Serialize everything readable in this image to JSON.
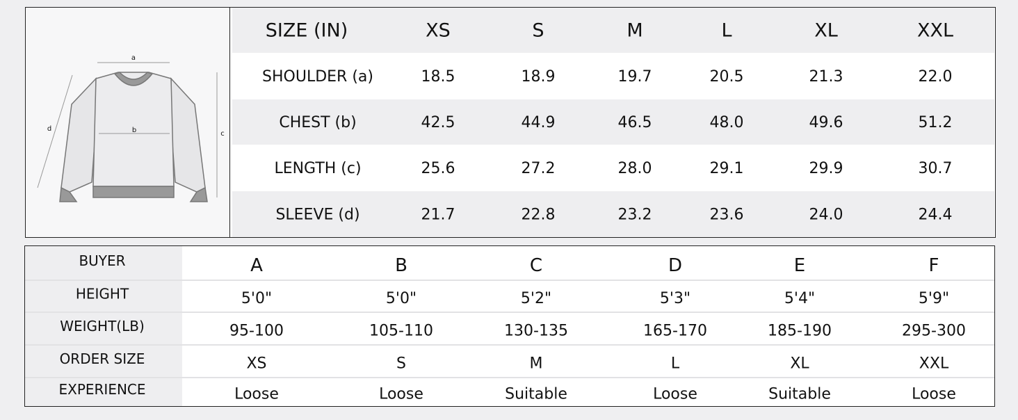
{
  "illustration": {
    "labels": [
      "a",
      "b",
      "c",
      "d"
    ]
  },
  "size_table": {
    "header": [
      "SIZE (IN)",
      "XS",
      "S",
      "M",
      "L",
      "XL",
      "XXL"
    ],
    "rows": [
      [
        "SHOULDER (a)",
        "18.5",
        "18.9",
        "19.7",
        "20.5",
        "21.3",
        "22.0"
      ],
      [
        "CHEST (b)",
        "42.5",
        "44.9",
        "46.5",
        "48.0",
        "49.6",
        "51.2"
      ],
      [
        "LENGTH (c)",
        "25.6",
        "27.2",
        "28.0",
        "29.1",
        "29.9",
        "30.7"
      ],
      [
        "SLEEVE (d)",
        "21.7",
        "22.8",
        "23.2",
        "23.6",
        "24.0",
        "24.4"
      ]
    ]
  },
  "buyer_table": {
    "rows": [
      [
        "BUYER",
        "A",
        "B",
        "C",
        "D",
        "E",
        "F"
      ],
      [
        "HEIGHT",
        "5'0\"",
        "5'0\"",
        "5'2\"",
        "5'3\"",
        "5'4\"",
        "5'9\""
      ],
      [
        "WEIGHT(LB)",
        "95-100",
        "105-110",
        "130-135",
        "165-170",
        "185-190",
        "295-300"
      ],
      [
        "ORDER SIZE",
        "XS",
        "S",
        "M",
        "L",
        "XL",
        "XXL"
      ],
      [
        "EXPERIENCE",
        "Loose",
        "Loose",
        "Suitable",
        "Loose",
        "Suitable",
        "Loose"
      ]
    ]
  }
}
